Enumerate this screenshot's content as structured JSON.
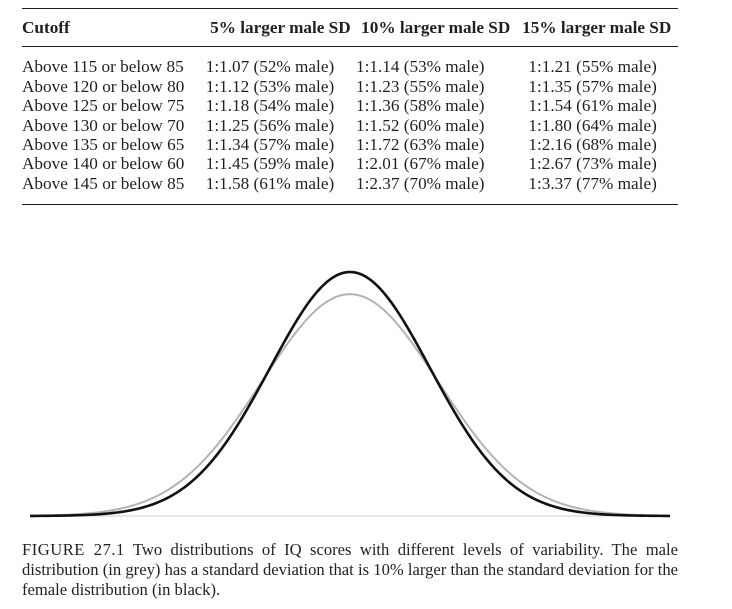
{
  "table": {
    "headers": [
      "Cutoff",
      "5% larger male SD",
      "10% larger male SD",
      "15% larger male SD"
    ],
    "rows": [
      [
        "Above 115 or below 85",
        "1:1.07 (52% male)",
        "1:1.14 (53% male)",
        "1:1.21 (55% male)"
      ],
      [
        "Above 120 or below 80",
        "1:1.12 (53% male)",
        "1:1.23 (55% male)",
        "1:1.35 (57% male)"
      ],
      [
        "Above 125 or below 75",
        "1:1.18 (54% male)",
        "1:1.36 (58% male)",
        "1:1.54 (61% male)"
      ],
      [
        "Above 130 or below 70",
        "1:1.25 (56% male)",
        "1:1.52 (60% male)",
        "1:1.80 (64% male)"
      ],
      [
        "Above 135 or below 65",
        "1:1.34 (57% male)",
        "1:1.72 (63% male)",
        "1:2.16 (68% male)"
      ],
      [
        "Above 140 or below 60",
        "1:1.45 (59% male)",
        "1:2.01 (67% male)",
        "1:2.67 (73% male)"
      ],
      [
        "Above 145 or below 85",
        "1:1.58 (61% male)",
        "1:2.37 (70% male)",
        "1:3.37 (77% male)"
      ]
    ]
  },
  "figure": {
    "female_sd": 1.0,
    "male_sd_ratio": 1.1,
    "x_range_sd": [
      -4.0,
      4.0
    ],
    "female_color": "#111111",
    "male_color": "#b3b3b3",
    "axis_color": "#cfcfcf"
  },
  "caption": {
    "label": "FIGURE 27.1",
    "text": "Two distributions of IQ scores with different levels of variability. The male distribution (in grey) has a standard deviation that is 10% larger than the standard deviation for the female distribution (in black)."
  }
}
